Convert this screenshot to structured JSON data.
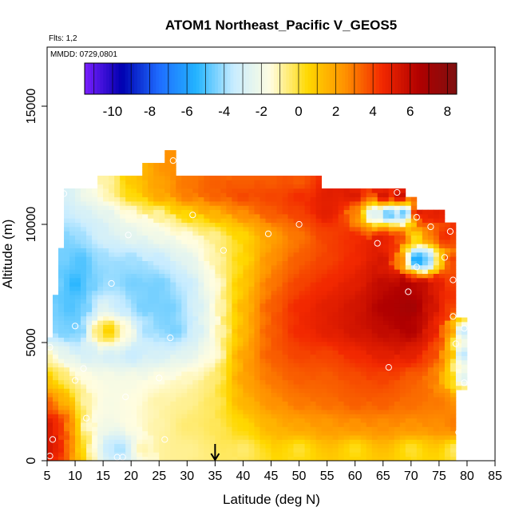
{
  "chart_data": {
    "type": "heatmap",
    "title": "ATOM1 Northeast_Pacific V_GEOS5",
    "flights_label": "Flts: 1,2",
    "dates_label": "MMDD: 0729,0801",
    "xlabel": "Latitude (deg N)",
    "ylabel": "Altitude (m)",
    "xlim": [
      5,
      85
    ],
    "ylim": [
      0,
      17500
    ],
    "x_ticks": [
      5,
      10,
      15,
      20,
      25,
      30,
      35,
      40,
      45,
      50,
      55,
      60,
      65,
      70,
      75,
      80,
      85
    ],
    "y_ticks": [
      0,
      5000,
      10000,
      15000
    ],
    "colorbar": {
      "range": [
        -11.5,
        8.5
      ],
      "ticks": [
        -10,
        -8,
        -6,
        -4,
        -2,
        0,
        2,
        4,
        6,
        8
      ],
      "colors": [
        "#7a1fff",
        "#0000b0",
        "#1e6cff",
        "#23b4ff",
        "#c8ecff",
        "#fffde0",
        "#ffd800",
        "#ff9100",
        "#f22800",
        "#b00000",
        "#7e1010"
      ]
    },
    "marker_latitude": 35,
    "cells": [
      [
        5,
        500,
        5.5
      ],
      [
        7,
        500,
        5.0
      ],
      [
        9,
        500,
        3.0
      ],
      [
        11,
        500,
        0.5
      ],
      [
        13,
        500,
        -1.5
      ],
      [
        16,
        500,
        -3.5
      ],
      [
        18,
        500,
        -4.0
      ],
      [
        22,
        500,
        -1.0
      ],
      [
        30,
        500,
        -0.8
      ],
      [
        40,
        500,
        -0.5
      ],
      [
        50,
        500,
        0.0
      ],
      [
        60,
        500,
        0.2
      ],
      [
        70,
        500,
        0.0
      ],
      [
        78,
        500,
        -0.5
      ],
      [
        5,
        1500,
        5.5
      ],
      [
        7,
        1500,
        4.5
      ],
      [
        9,
        1500,
        2.5
      ],
      [
        12,
        1500,
        -1.5
      ],
      [
        16,
        1500,
        -2.0
      ],
      [
        20,
        1500,
        -1.5
      ],
      [
        25,
        1500,
        -1.0
      ],
      [
        30,
        1500,
        -0.5
      ],
      [
        35,
        1500,
        -0.3
      ],
      [
        40,
        1500,
        0.5
      ],
      [
        45,
        1500,
        1.5
      ],
      [
        50,
        1500,
        2.0
      ],
      [
        55,
        1500,
        2.2
      ],
      [
        60,
        1500,
        2.5
      ],
      [
        65,
        1500,
        2.5
      ],
      [
        70,
        1500,
        2.5
      ],
      [
        75,
        1500,
        2.5
      ],
      [
        78,
        1500,
        3.0
      ],
      [
        5,
        2500,
        3.5
      ],
      [
        8,
        2500,
        1.5
      ],
      [
        12,
        2500,
        -1.0
      ],
      [
        16,
        2500,
        -1.8
      ],
      [
        20,
        2500,
        -1.5
      ],
      [
        25,
        2500,
        -1.0
      ],
      [
        30,
        2500,
        -0.8
      ],
      [
        35,
        2500,
        -0.3
      ],
      [
        40,
        2500,
        1.5
      ],
      [
        45,
        2500,
        2.5
      ],
      [
        50,
        2500,
        3.0
      ],
      [
        55,
        2500,
        3.2
      ],
      [
        60,
        2500,
        3.5
      ],
      [
        65,
        2500,
        3.5
      ],
      [
        70,
        2500,
        3.2
      ],
      [
        75,
        2500,
        3.0
      ],
      [
        78,
        2500,
        2.5
      ],
      [
        5,
        3500,
        1.0
      ],
      [
        8,
        3500,
        -0.5
      ],
      [
        12,
        3500,
        -1.5
      ],
      [
        16,
        3500,
        -1.8
      ],
      [
        20,
        3500,
        -1.8
      ],
      [
        25,
        3500,
        -1.5
      ],
      [
        30,
        3500,
        -1.2
      ],
      [
        35,
        3500,
        -0.5
      ],
      [
        40,
        3500,
        2.0
      ],
      [
        45,
        3500,
        3.0
      ],
      [
        50,
        3500,
        3.5
      ],
      [
        55,
        3500,
        3.5
      ],
      [
        60,
        3500,
        3.8
      ],
      [
        65,
        3500,
        4.0
      ],
      [
        70,
        3500,
        3.5
      ],
      [
        74,
        3500,
        3.0
      ],
      [
        77,
        3500,
        1.0
      ],
      [
        79,
        3500,
        -3.0
      ],
      [
        5,
        4500,
        -1.0
      ],
      [
        8,
        4500,
        -2.5
      ],
      [
        12,
        4500,
        -3.0
      ],
      [
        16,
        4500,
        -3.0
      ],
      [
        20,
        4500,
        -3.5
      ],
      [
        25,
        4500,
        -3.0
      ],
      [
        30,
        4500,
        -2.5
      ],
      [
        35,
        4500,
        -1.5
      ],
      [
        40,
        4500,
        2.0
      ],
      [
        45,
        4500,
        3.5
      ],
      [
        50,
        4500,
        4.0
      ],
      [
        55,
        4500,
        4.0
      ],
      [
        60,
        4500,
        4.5
      ],
      [
        65,
        4500,
        5.0
      ],
      [
        70,
        4500,
        5.0
      ],
      [
        74,
        4500,
        4.0
      ],
      [
        77,
        4500,
        2.0
      ],
      [
        79,
        4500,
        -4.0
      ],
      [
        5,
        5500,
        -4.0
      ],
      [
        8,
        5500,
        -4.5
      ],
      [
        11,
        5500,
        -4.5
      ],
      [
        14,
        5500,
        -0.5
      ],
      [
        16,
        5500,
        1.0
      ],
      [
        19,
        5500,
        -1.5
      ],
      [
        23,
        5500,
        -4.0
      ],
      [
        28,
        5500,
        -4.5
      ],
      [
        32,
        5500,
        -3.0
      ],
      [
        36,
        5500,
        -1.0
      ],
      [
        40,
        5500,
        1.5
      ],
      [
        45,
        5500,
        3.5
      ],
      [
        50,
        5500,
        4.5
      ],
      [
        55,
        5500,
        5.0
      ],
      [
        60,
        5500,
        5.5
      ],
      [
        65,
        5500,
        6.0
      ],
      [
        70,
        5500,
        6.5
      ],
      [
        74,
        5500,
        5.0
      ],
      [
        77,
        5500,
        3.0
      ],
      [
        79,
        5500,
        -4.0
      ],
      [
        6,
        6500,
        -4.5
      ],
      [
        9,
        6500,
        -5.0
      ],
      [
        12,
        6500,
        -4.5
      ],
      [
        15,
        6500,
        -2.5
      ],
      [
        18,
        6500,
        -3.5
      ],
      [
        22,
        6500,
        -4.5
      ],
      [
        27,
        6500,
        -4.5
      ],
      [
        32,
        6500,
        -3.0
      ],
      [
        36,
        6500,
        -1.0
      ],
      [
        40,
        6500,
        1.5
      ],
      [
        45,
        6500,
        3.5
      ],
      [
        50,
        6500,
        4.5
      ],
      [
        55,
        6500,
        5.0
      ],
      [
        60,
        6500,
        5.5
      ],
      [
        65,
        6500,
        6.5
      ],
      [
        70,
        6500,
        7.0
      ],
      [
        74,
        6500,
        5.5
      ],
      [
        77,
        6500,
        4.0
      ],
      [
        7,
        7500,
        -4.5
      ],
      [
        10,
        7500,
        -5.5
      ],
      [
        13,
        7500,
        -4.5
      ],
      [
        16,
        7500,
        -4.0
      ],
      [
        20,
        7500,
        -4.5
      ],
      [
        25,
        7500,
        -4.5
      ],
      [
        30,
        7500,
        -3.5
      ],
      [
        35,
        7500,
        -1.5
      ],
      [
        40,
        7500,
        1.0
      ],
      [
        45,
        7500,
        3.0
      ],
      [
        50,
        7500,
        4.0
      ],
      [
        55,
        7500,
        4.5
      ],
      [
        60,
        7500,
        5.0
      ],
      [
        65,
        7500,
        6.0
      ],
      [
        69,
        7500,
        6.5
      ],
      [
        72,
        7500,
        6.0
      ],
      [
        75,
        7500,
        5.0
      ],
      [
        77,
        7500,
        4.0
      ],
      [
        8,
        8500,
        -4.5
      ],
      [
        11,
        8500,
        -5.0
      ],
      [
        15,
        8500,
        -4.0
      ],
      [
        20,
        8500,
        -4.0
      ],
      [
        25,
        8500,
        -3.5
      ],
      [
        30,
        8500,
        -2.5
      ],
      [
        35,
        8500,
        -1.0
      ],
      [
        40,
        8500,
        0.5
      ],
      [
        45,
        8500,
        2.5
      ],
      [
        50,
        8500,
        3.5
      ],
      [
        55,
        8500,
        4.0
      ],
      [
        60,
        8500,
        4.5
      ],
      [
        65,
        8500,
        5.5
      ],
      [
        68,
        8500,
        3.0
      ],
      [
        71,
        8500,
        -6.5
      ],
      [
        73,
        8500,
        -5.0
      ],
      [
        75,
        8500,
        0.5
      ],
      [
        77,
        8500,
        4.5
      ],
      [
        7,
        9500,
        -4.5
      ],
      [
        11,
        9500,
        -4.0
      ],
      [
        15,
        9500,
        -3.0
      ],
      [
        20,
        9500,
        -2.5
      ],
      [
        25,
        9500,
        -2.0
      ],
      [
        30,
        9500,
        -1.5
      ],
      [
        35,
        9500,
        -0.8
      ],
      [
        40,
        9500,
        0.5
      ],
      [
        45,
        9500,
        2.0
      ],
      [
        50,
        9500,
        3.0
      ],
      [
        55,
        9500,
        4.0
      ],
      [
        60,
        9500,
        4.5
      ],
      [
        65,
        9500,
        5.0
      ],
      [
        68,
        9500,
        4.0
      ],
      [
        71,
        9500,
        0.0
      ],
      [
        73,
        9500,
        3.0
      ],
      [
        76,
        9500,
        4.5
      ],
      [
        8,
        10500,
        -3.5
      ],
      [
        12,
        10500,
        -3.0
      ],
      [
        16,
        10500,
        -2.5
      ],
      [
        20,
        10500,
        -1.5
      ],
      [
        25,
        10500,
        -1.0
      ],
      [
        30,
        10500,
        0.5
      ],
      [
        35,
        10500,
        1.5
      ],
      [
        40,
        10500,
        2.5
      ],
      [
        45,
        10500,
        3.5
      ],
      [
        50,
        10500,
        4.0
      ],
      [
        55,
        10500,
        5.0
      ],
      [
        60,
        10500,
        3.0
      ],
      [
        63,
        10500,
        -3.0
      ],
      [
        66,
        10500,
        -5.0
      ],
      [
        69,
        10500,
        -6.0
      ],
      [
        71,
        10500,
        6.0
      ],
      [
        73,
        10500,
        5.0
      ],
      [
        8,
        11200,
        -3.0
      ],
      [
        12,
        11200,
        -2.0
      ],
      [
        16,
        11200,
        -1.0
      ],
      [
        20,
        11200,
        0.5
      ],
      [
        25,
        11200,
        2.0
      ],
      [
        30,
        11200,
        3.0
      ],
      [
        35,
        11200,
        3.5
      ],
      [
        40,
        11200,
        4.0
      ],
      [
        45,
        11200,
        4.0
      ],
      [
        50,
        11200,
        4.5
      ],
      [
        55,
        11200,
        5.0
      ],
      [
        60,
        11200,
        5.5
      ],
      [
        65,
        11200,
        6.0
      ],
      [
        68,
        11200,
        6.5
      ],
      [
        16,
        11800,
        -1.0
      ],
      [
        20,
        11800,
        1.0
      ],
      [
        25,
        11800,
        2.0
      ],
      [
        30,
        11800,
        3.0
      ],
      [
        35,
        11800,
        3.5
      ],
      [
        40,
        11800,
        3.5
      ],
      [
        45,
        11800,
        3.5
      ],
      [
        50,
        11800,
        3.5
      ],
      [
        22,
        12400,
        1.5
      ],
      [
        26,
        12400,
        2.5
      ],
      [
        30,
        12400,
        2.8
      ],
      [
        35,
        12400,
        3.0
      ],
      [
        40,
        12400,
        3.0
      ],
      [
        27,
        12900,
        2.5
      ]
    ],
    "samples": [
      [
        5.5,
        200
      ],
      [
        6.0,
        900
      ],
      [
        17.5,
        150
      ],
      [
        18.5,
        150
      ],
      [
        26,
        900
      ],
      [
        12,
        1800
      ],
      [
        19,
        2700
      ],
      [
        78.5,
        1200
      ],
      [
        79,
        800
      ],
      [
        10,
        3400
      ],
      [
        11.5,
        3900
      ],
      [
        25,
        3500
      ],
      [
        79.5,
        3300
      ],
      [
        66,
        3950
      ],
      [
        5.5,
        4800
      ],
      [
        78,
        4950
      ],
      [
        10,
        5700
      ],
      [
        27,
        5200
      ],
      [
        77.5,
        6100
      ],
      [
        79.5,
        5600
      ],
      [
        16.5,
        7500
      ],
      [
        69.5,
        7150
      ],
      [
        77.5,
        7650
      ],
      [
        36.5,
        8900
      ],
      [
        71,
        8200
      ],
      [
        76,
        8600
      ],
      [
        64,
        9200
      ],
      [
        19.5,
        9550
      ],
      [
        44.5,
        9600
      ],
      [
        77,
        9700
      ],
      [
        31,
        10400
      ],
      [
        50,
        10000
      ],
      [
        71,
        10300
      ],
      [
        73.5,
        9900
      ],
      [
        8,
        11300
      ],
      [
        67.5,
        11350
      ],
      [
        27.5,
        12700
      ]
    ]
  }
}
